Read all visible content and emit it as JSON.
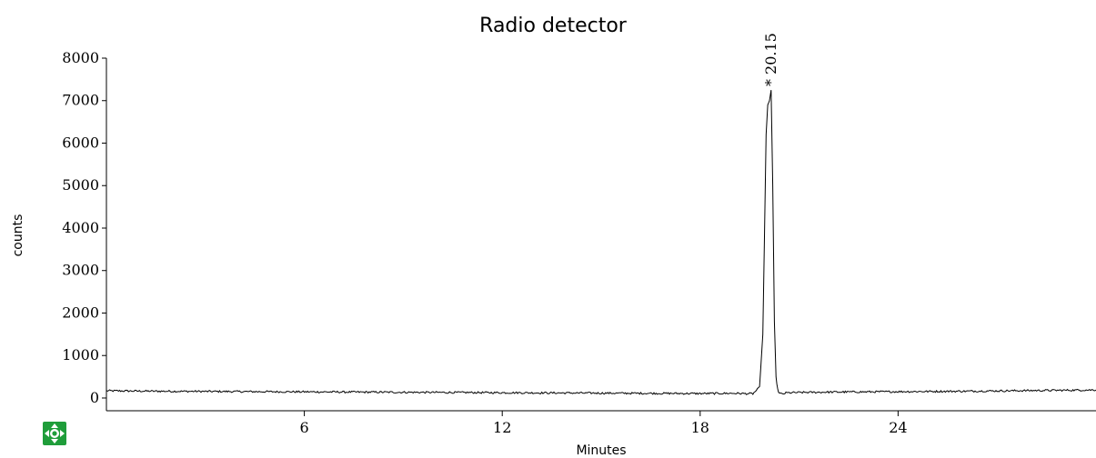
{
  "title": "Radio detector",
  "icons": {
    "pan": "move-arrows-icon"
  },
  "colors": {
    "trace": "#000000",
    "icon_bg": "#1f9d3a",
    "background": "#ffffff"
  },
  "chart_data": {
    "type": "line",
    "title": "Radio detector",
    "xlabel": "Minutes",
    "ylabel": "counts",
    "xlim": [
      0,
      30
    ],
    "ylim": [
      -300,
      8000
    ],
    "xticks": [
      6,
      12,
      18,
      24
    ],
    "yticks": [
      0,
      1000,
      2000,
      3000,
      4000,
      5000,
      6000,
      7000,
      8000
    ],
    "grid": false,
    "baseline": 150,
    "peaks": [
      {
        "x": 20.15,
        "label": "* 20.15",
        "height": 7250
      }
    ],
    "series": [
      {
        "x": [
          0,
          1.5,
          3,
          4.5,
          6,
          7.5,
          9,
          10.5,
          12,
          13.5,
          15,
          16.5,
          18,
          19,
          19.6,
          19.8,
          19.9,
          19.95,
          20.0,
          20.05,
          20.1,
          20.15,
          20.2,
          20.25,
          20.3,
          20.35,
          20.4,
          20.5,
          20.6,
          21,
          22,
          24,
          26,
          28,
          30
        ],
        "y": [
          170,
          160,
          155,
          150,
          145,
          140,
          135,
          130,
          125,
          120,
          115,
          110,
          105,
          110,
          100,
          250,
          1500,
          3800,
          6200,
          6900,
          7000,
          7250,
          5000,
          1800,
          500,
          200,
          110,
          90,
          120,
          130,
          140,
          150,
          160,
          175,
          190
        ]
      }
    ]
  }
}
